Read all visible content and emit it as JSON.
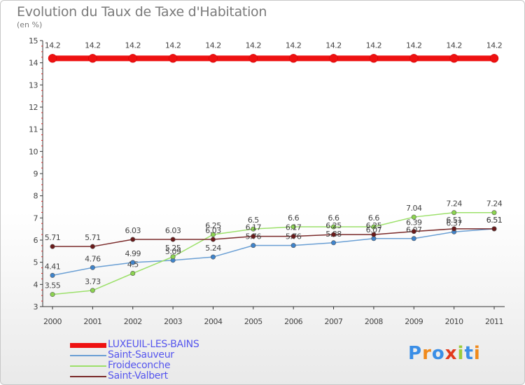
{
  "header": {
    "title": "Evolution du Taux de Taxe d'Habitation",
    "subtitle": "(en %)"
  },
  "logo": {
    "letters": [
      "P",
      "r",
      "o",
      "x",
      "i",
      "t",
      "i"
    ],
    "colors": [
      "#3a8ee6",
      "#f08a1c",
      "#3a8ee6",
      "#e23a1c",
      "#9ccc3a",
      "#3a8ee6",
      "#f08a1c"
    ]
  },
  "chart_data": {
    "type": "line",
    "title": "Evolution du Taux de Taxe d'Habitation",
    "subtitle": "(en %)",
    "xlabel": "",
    "ylabel": "",
    "x": [
      "2000",
      "2001",
      "2002",
      "2003",
      "2004",
      "2005",
      "2006",
      "2007",
      "2008",
      "2009",
      "2010",
      "2011"
    ],
    "ylim": [
      3,
      15
    ],
    "yticks": [
      3,
      4,
      5,
      6,
      7,
      8,
      9,
      10,
      11,
      12,
      13,
      14,
      15
    ],
    "grid": false,
    "legend_position": "bottom-left",
    "series": [
      {
        "name": "LUXEUIL-LES-BAINS",
        "color": "#ee1111",
        "point_color": "#ee1111",
        "width": 8,
        "values": [
          14.2,
          14.2,
          14.2,
          14.2,
          14.2,
          14.2,
          14.2,
          14.2,
          14.2,
          14.2,
          14.2,
          14.2
        ],
        "labels": [
          "14.2",
          "14.2",
          "14.2",
          "14.2",
          "14.2",
          "14.2",
          "14.2",
          "14.2",
          "14.2",
          "14.2",
          "14.2",
          "14.2"
        ]
      },
      {
        "name": "Saint-Sauveur",
        "color": "#6a9fd4",
        "point_color": "#3f84cc",
        "width": 1.5,
        "values": [
          4.41,
          4.76,
          4.99,
          5.09,
          5.24,
          5.76,
          5.76,
          5.88,
          6.07,
          6.07,
          6.37,
          6.51
        ],
        "labels": [
          "4.41",
          "4.76",
          "4.99",
          "5.09",
          "5.24",
          "5.76",
          "5.76",
          "5.88",
          "6.07",
          "6.07",
          "6.37",
          "6.51"
        ]
      },
      {
        "name": "Froideconche",
        "color": "#9ce06a",
        "point_color": "#8cd450",
        "width": 1.5,
        "values": [
          3.55,
          3.73,
          4.5,
          5.25,
          6.25,
          6.5,
          6.6,
          6.6,
          6.6,
          7.04,
          7.24,
          7.24
        ],
        "labels": [
          "3.55",
          "3.73",
          "4.5",
          "5.25",
          "6.25",
          "6.5",
          "6.6",
          "6.6",
          "6.6",
          "7.04",
          "7.24",
          "7.24"
        ]
      },
      {
        "name": "Saint-Valbert",
        "color": "#7a2a2a",
        "point_color": "#6a1a1a",
        "width": 1.5,
        "values": [
          5.71,
          5.71,
          6.03,
          6.03,
          6.03,
          6.17,
          6.17,
          6.25,
          6.25,
          6.39,
          6.51,
          6.51
        ],
        "labels": [
          "5.71",
          "5.71",
          "6.03",
          "6.03",
          "6.03",
          "6.17",
          "6.17",
          "6.25",
          "6.25",
          "6.39",
          "6.51",
          "6.51"
        ]
      }
    ]
  }
}
